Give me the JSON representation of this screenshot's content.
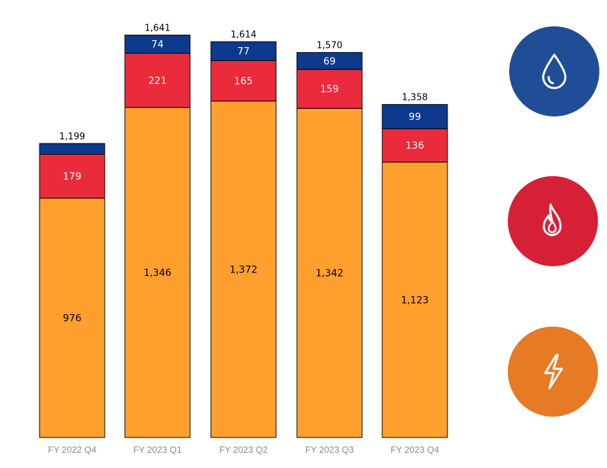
{
  "chart_data": {
    "type": "bar",
    "stacked": true,
    "categories": [
      "FY 2022 Q4",
      "FY 2023 Q1",
      "FY 2023 Q2",
      "FY 2023 Q3",
      "FY 2023 Q4"
    ],
    "series": [
      {
        "color": "#FF9F2E",
        "values": [
          976,
          1346,
          1372,
          1342,
          1123
        ],
        "icon": "lightning-icon"
      },
      {
        "color": "#E92B3B",
        "values": [
          179,
          221,
          165,
          159,
          136
        ],
        "icon": "flame-icon"
      },
      {
        "color": "#0D3A8C",
        "values": [
          44,
          74,
          77,
          69,
          99
        ],
        "icon": "water-drop-icon"
      }
    ],
    "segment_labels": [
      [
        "976",
        "179",
        ""
      ],
      [
        "1,346",
        "221",
        "74"
      ],
      [
        "1,372",
        "165",
        "77"
      ],
      [
        "1,342",
        "159",
        "69"
      ],
      [
        "1,123",
        "136",
        "99"
      ]
    ],
    "totals": [
      "1,199",
      "1,641",
      "1,614",
      "1,570",
      "1,358"
    ],
    "ylim": [
      0,
      1800
    ],
    "grid": false,
    "legend": "icons-right",
    "legend_colors": {
      "water": "#1F4E97",
      "gas": "#D62036",
      "electric": "#E77A25"
    }
  }
}
